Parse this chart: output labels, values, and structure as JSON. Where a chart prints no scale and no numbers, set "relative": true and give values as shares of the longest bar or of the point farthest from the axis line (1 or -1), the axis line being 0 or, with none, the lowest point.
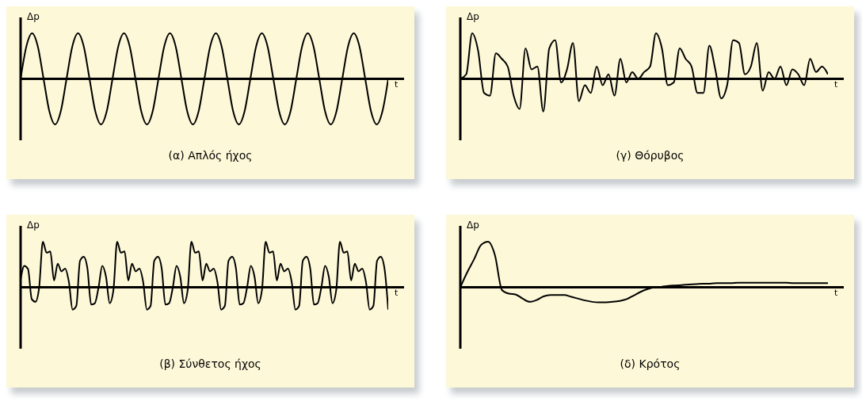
{
  "chart_data": [
    {
      "type": "line",
      "title": "(α) Απλός ήχος",
      "xlabel": "t",
      "ylabel": "Δp",
      "relative": true,
      "categories": [
        null,
        null,
        null,
        null,
        null,
        null,
        null,
        null,
        null,
        null,
        null,
        null,
        null,
        null,
        null,
        null,
        null,
        null,
        null,
        null,
        null,
        null,
        null,
        null,
        null,
        null,
        null,
        null,
        null,
        null,
        null,
        null,
        null,
        null,
        null,
        null,
        null,
        null,
        null,
        null,
        null,
        null,
        null,
        null,
        null,
        null,
        null,
        null,
        null,
        null,
        null,
        null,
        null,
        null,
        null,
        null,
        null,
        null,
        null,
        null,
        null,
        null,
        null,
        null,
        null
      ],
      "series": [
        {
          "color": "#000000",
          "values": [
            0,
            0.71,
            1,
            0.71,
            0,
            -0.71,
            -1,
            -0.71,
            0,
            0.71,
            1,
            0.71,
            0,
            -0.71,
            -1,
            -0.71,
            0,
            0.71,
            1,
            0.71,
            0,
            -0.71,
            -1,
            -0.71,
            0,
            0.71,
            1,
            0.71,
            0,
            -0.71,
            -1,
            -0.71,
            0,
            0.71,
            1,
            0.71,
            0,
            -0.71,
            -1,
            -0.71,
            0,
            0.71,
            1,
            0.71,
            0,
            -0.71,
            -1,
            -0.71,
            0,
            0.71,
            1,
            0.71,
            0,
            -0.71,
            -1,
            -0.71,
            0,
            0.71,
            1,
            0.71,
            0,
            -0.71,
            -1,
            -0.71,
            0
          ]
        }
      ]
    },
    {
      "type": "line",
      "title": "(γ) Θόρυβος",
      "xlabel": "t",
      "ylabel": "Δp",
      "relative": true,
      "categories": [
        null,
        null,
        null,
        null,
        null,
        null,
        null,
        null,
        null,
        null,
        null,
        null,
        null,
        null,
        null,
        null,
        null,
        null,
        null,
        null,
        null,
        null,
        null,
        null,
        null,
        null,
        null,
        null,
        null,
        null,
        null,
        null,
        null,
        null,
        null,
        null,
        null,
        null,
        null,
        null,
        null,
        null,
        null,
        null,
        null,
        null,
        null,
        null,
        null,
        null,
        null,
        null,
        null,
        null,
        null,
        null,
        null,
        null,
        null,
        null,
        null,
        null,
        null
      ],
      "series": [
        {
          "color": "#000000",
          "values": [
            0,
            0.1,
            1,
            0.62,
            -0.31,
            -0.37,
            0.56,
            0.44,
            0.27,
            -0.37,
            -0.66,
            0.67,
            0.21,
            0.27,
            -0.72,
            0.67,
            0.85,
            -0.08,
            0.21,
            0.79,
            -0.49,
            -0.14,
            -0.31,
            0.27,
            -0.14,
            0.1,
            -0.37,
            0.44,
            -0.08,
            0.15,
            0,
            0.15,
            0.27,
            1,
            0.67,
            -0.14,
            -0.08,
            0.67,
            0.44,
            0.27,
            -0.31,
            -0.31,
            0.73,
            0.21,
            -0.43,
            -0.14,
            0.85,
            0.79,
            0.1,
            0.27,
            0.79,
            -0.26,
            0.15,
            0,
            0.27,
            -0.14,
            0.21,
            0.1,
            -0.14,
            0.44,
            0.15,
            0.27,
            0.1
          ]
        }
      ]
    },
    {
      "type": "line",
      "title": "(β) Σύνθετος ήχος",
      "xlabel": "t",
      "ylabel": "Δp",
      "relative": true,
      "categories": [
        null,
        null,
        null,
        null,
        null,
        null,
        null,
        null,
        null,
        null,
        null,
        null,
        null,
        null,
        null,
        null,
        null,
        null,
        null,
        null,
        null,
        null,
        null,
        null,
        null,
        null,
        null,
        null,
        null,
        null,
        null,
        null,
        null,
        null,
        null,
        null,
        null,
        null,
        null,
        null,
        null,
        null,
        null,
        null,
        null,
        null,
        null,
        null,
        null,
        null,
        null,
        null,
        null,
        null,
        null,
        null,
        null,
        null,
        null,
        null,
        null,
        null,
        null,
        null,
        null,
        null,
        null,
        null,
        null,
        null,
        null,
        null,
        null,
        null,
        null,
        null,
        null,
        null,
        null,
        null,
        null,
        null,
        null,
        null,
        null,
        null,
        null,
        null,
        null,
        null,
        null,
        null,
        null,
        null,
        null,
        null,
        null,
        null,
        null,
        null
      ],
      "series": [
        {
          "color": "#000000",
          "values": [
            0.17,
            0.47,
            0.4,
            -0.26,
            -0.32,
            0,
            1,
            0.76,
            0.79,
            0.15,
            0.52,
            0.35,
            0.41,
            0.12,
            -0.49,
            -0.41,
            0.58,
            0.67,
            0.41,
            -0.38,
            -0.35,
            0,
            0.47,
            0.23,
            -0.35,
            -0.06,
            1,
            0.76,
            0.79,
            0.15,
            0.52,
            0.35,
            0.41,
            0.12,
            -0.49,
            -0.41,
            0.58,
            0.67,
            0.41,
            -0.38,
            -0.35,
            0,
            0.47,
            0.23,
            -0.35,
            -0.06,
            1,
            0.76,
            0.79,
            0.15,
            0.52,
            0.35,
            0.41,
            0.12,
            -0.49,
            -0.41,
            0.58,
            0.67,
            0.41,
            -0.38,
            -0.35,
            0,
            0.47,
            0.23,
            -0.35,
            -0.06,
            1,
            0.76,
            0.79,
            0.15,
            0.52,
            0.35,
            0.41,
            0.12,
            -0.49,
            -0.41,
            0.58,
            0.67,
            0.41,
            -0.38,
            -0.35,
            0,
            0.47,
            0.23,
            -0.35,
            -0.06,
            1,
            0.76,
            0.79,
            0.15,
            0.52,
            0.35,
            0.41,
            0.12,
            -0.49,
            -0.41,
            0.58,
            0.67,
            0.41,
            -0.49
          ]
        }
      ]
    },
    {
      "type": "line",
      "title": "(δ) Κρότος",
      "xlabel": "t",
      "ylabel": "Δp",
      "relative": true,
      "categories": [
        null,
        null,
        null,
        null,
        null,
        null,
        null,
        null,
        null,
        null,
        null,
        null,
        null,
        null,
        null,
        null,
        null,
        null,
        null,
        null,
        null,
        null,
        null,
        null,
        null,
        null,
        null,
        null,
        null,
        null,
        null,
        null,
        null,
        null,
        null,
        null,
        null,
        null,
        null,
        null,
        null,
        null,
        null,
        null,
        null,
        null,
        null,
        null,
        null,
        null,
        null,
        null,
        null,
        null
      ],
      "series": [
        {
          "color": "#000000",
          "values": [
            0,
            0.33,
            0.62,
            0.93,
            1,
            0.7,
            -0.06,
            -0.14,
            -0.16,
            -0.25,
            -0.32,
            -0.28,
            -0.2,
            -0.17,
            -0.17,
            -0.17,
            -0.21,
            -0.25,
            -0.29,
            -0.32,
            -0.33,
            -0.33,
            -0.32,
            -0.3,
            -0.26,
            -0.18,
            -0.1,
            -0.04,
            0,
            0.01,
            0.03,
            0.04,
            0.05,
            0.06,
            0.07,
            0.08,
            0.08,
            0.09,
            0.09,
            0.09,
            0.1,
            0.1,
            0.1,
            0.1,
            0.1,
            0.1,
            0.1,
            0.1,
            0.09,
            0.09,
            0.09,
            0.09,
            0.09,
            0.09
          ]
        }
      ]
    }
  ]
}
